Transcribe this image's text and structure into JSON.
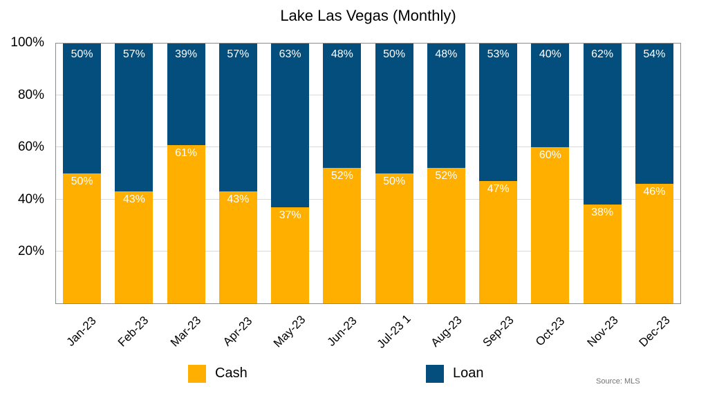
{
  "title": "Lake Las Vegas (Monthly)",
  "source_note": "Source: MLS",
  "legend": {
    "items": [
      {
        "label": "Cash",
        "color": "#FFAF00"
      },
      {
        "label": "Loan",
        "color": "#044E7D"
      }
    ]
  },
  "chart_data": {
    "type": "bar",
    "subtype": "stacked-100-percent-column",
    "title": "Lake Las Vegas (Monthly)",
    "categories": [
      "Jan-23",
      "Feb-23",
      "Mar-23",
      "Apr-23",
      "May-23",
      "Jun-23",
      "Jul-23 1",
      "Aug-23",
      "Sep-23",
      "Oct-23",
      "Nov-23",
      "Dec-23"
    ],
    "series": [
      {
        "name": "Cash",
        "color": "#FFAF00",
        "values": [
          50,
          43,
          61,
          43,
          37,
          52,
          50,
          52,
          47,
          60,
          38,
          46
        ]
      },
      {
        "name": "Loan",
        "color": "#044E7D",
        "values": [
          50,
          57,
          39,
          57,
          63,
          48,
          50,
          48,
          53,
          40,
          62,
          54
        ]
      }
    ],
    "xlabel": "",
    "ylabel": "",
    "ylim": [
      0,
      100
    ],
    "yticks": [
      20,
      40,
      60,
      80,
      100
    ],
    "ytick_format": "{value}%",
    "value_label_format": "{value}%",
    "value_labels_position": "inside-top-of-segment",
    "grid": "horizontal",
    "grid_color": "#D9D9D9",
    "frame_color": "#8A8A8A",
    "legend_position": "bottom",
    "source": "Source: MLS"
  }
}
